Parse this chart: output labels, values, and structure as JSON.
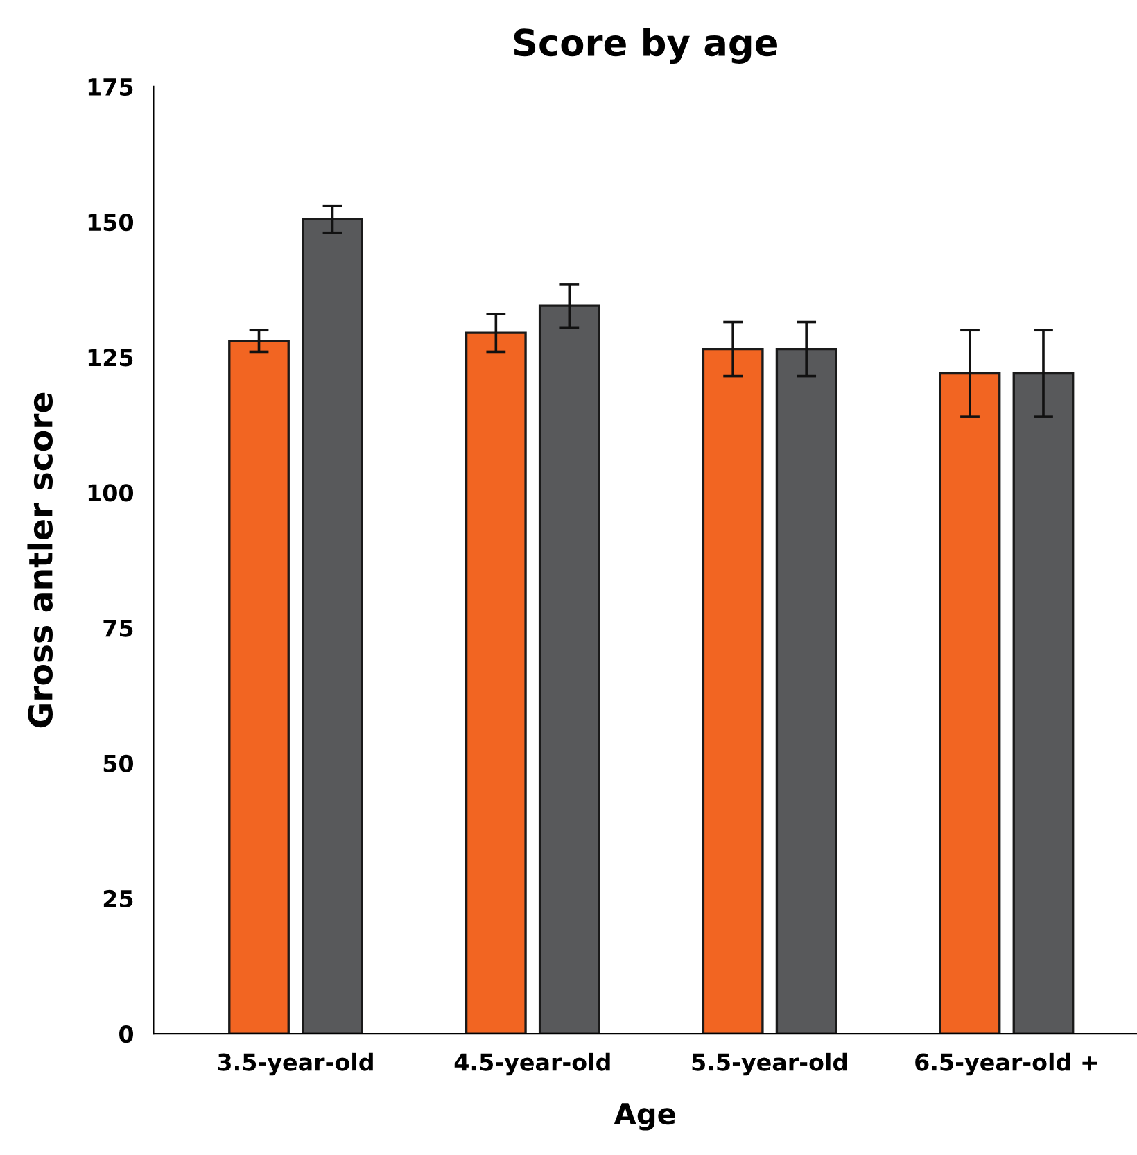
{
  "chart_data": {
    "type": "bar",
    "title": "Score by age",
    "xlabel": "Age",
    "ylabel": "Gross antler score",
    "categories": [
      "3.5-year-old",
      "4.5-year-old",
      "5.5-year-old",
      "6.5-year-old +"
    ],
    "series": [
      {
        "color": "#f26522",
        "values": [
          128,
          129.5,
          126.5,
          122
        ],
        "errors": [
          2,
          3.5,
          5,
          8
        ]
      },
      {
        "color": "#58595b",
        "values": [
          150.5,
          134.5,
          126.5,
          122
        ],
        "errors": [
          2.5,
          4,
          5,
          8
        ]
      }
    ],
    "ylim": [
      0,
      175
    ],
    "yticks": [
      0,
      25,
      50,
      75,
      100,
      125,
      150,
      175
    ],
    "grid": false,
    "legend": false
  }
}
